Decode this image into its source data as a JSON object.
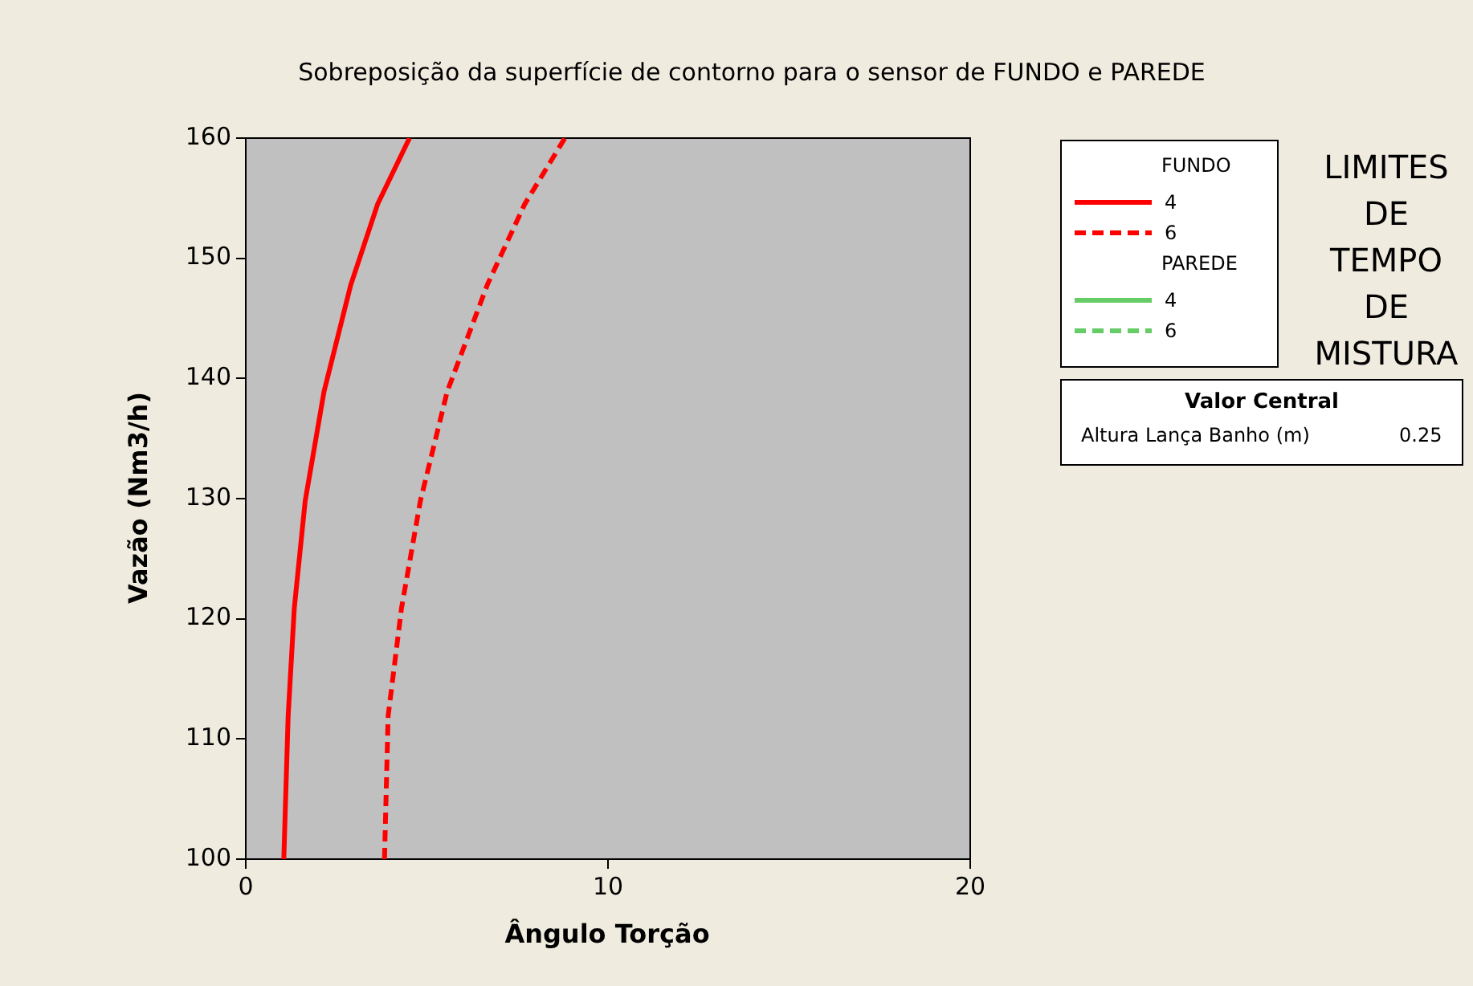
{
  "chart_data": {
    "type": "line",
    "title": "Sobreposição da superfície de contorno para o sensor de FUNDO e PAREDE",
    "xlabel": "Ângulo Torção",
    "ylabel": "Vazão (Nm3/h)",
    "xlim": [
      0,
      20
    ],
    "xticks": [
      0,
      10,
      20
    ],
    "ylim": [
      100,
      160
    ],
    "yticks": [
      100,
      110,
      120,
      130,
      140,
      150,
      160
    ],
    "grid": false,
    "legend": "right",
    "marker": "none",
    "annotations": [
      "FUNDO",
      "PAREDE",
      "LIMITES DE TEMPO DE MISTURA",
      "Valor Central",
      "Altura Lança Banho (m)",
      "0.25"
    ],
    "series": [
      {
        "name": "4",
        "color": "#ff0000",
        "line_style": "solid",
        "x": [
          1.05,
          1.17,
          1.34,
          1.64,
          2.16,
          2.9,
          3.64,
          4.52
        ],
        "values": [
          100,
          111.9,
          120.9,
          129.8,
          138.9,
          147.8,
          154.5,
          160
        ]
      },
      {
        "name": "6",
        "color": "#ff0000",
        "line_style": "dashed",
        "x": [
          3.83,
          3.93,
          4.3,
          4.82,
          5.56,
          6.67,
          7.7,
          8.81
        ],
        "values": [
          100,
          111.9,
          120.9,
          129.8,
          138.9,
          147.8,
          154.5,
          160
        ]
      },
      {
        "name": "4",
        "color": "#66cc66",
        "line_style": "solid"
      },
      {
        "name": "6",
        "color": "#66cc66",
        "line_style": "dashed"
      }
    ]
  }
}
